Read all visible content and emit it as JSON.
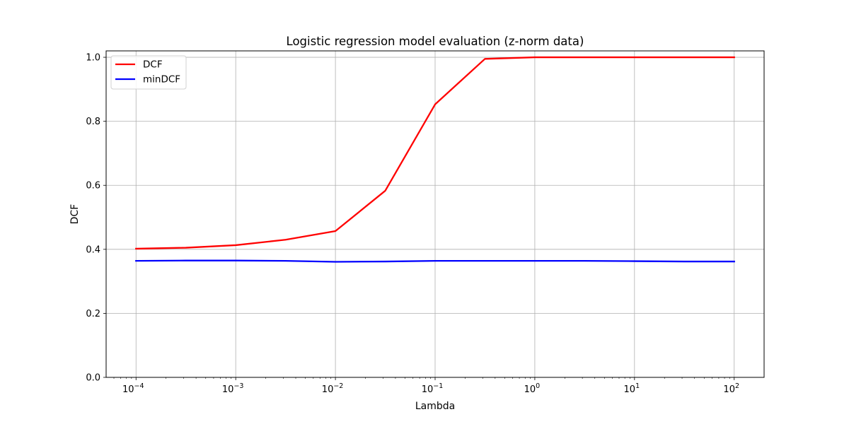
{
  "chart_data": {
    "type": "line",
    "title": "Logistic regression model evaluation (z-norm data)",
    "xlabel": "Lambda",
    "ylabel": "DCF",
    "x_scale": "log",
    "xlim_exponents": [
      -4.3,
      2.3
    ],
    "ylim": [
      0,
      1.02
    ],
    "grid": true,
    "legend_position": "top-left",
    "x_ticks": [
      {
        "base": "10",
        "exp": "−4",
        "value": 0.0001
      },
      {
        "base": "10",
        "exp": "−3",
        "value": 0.001
      },
      {
        "base": "10",
        "exp": "−2",
        "value": 0.01
      },
      {
        "base": "10",
        "exp": "−1",
        "value": 0.1
      },
      {
        "base": "10",
        "exp": "0",
        "value": 1
      },
      {
        "base": "10",
        "exp": "1",
        "value": 10
      },
      {
        "base": "10",
        "exp": "2",
        "value": 100
      }
    ],
    "y_ticks": [
      {
        "label": "0.0",
        "value": 0.0
      },
      {
        "label": "0.2",
        "value": 0.2
      },
      {
        "label": "0.4",
        "value": 0.4
      },
      {
        "label": "0.6",
        "value": 0.6
      },
      {
        "label": "0.8",
        "value": 0.8
      },
      {
        "label": "1.0",
        "value": 1.0
      }
    ],
    "x": [
      0.0001,
      0.000316,
      0.001,
      0.00316,
      0.01,
      0.0316,
      0.1,
      0.316,
      1,
      3.16,
      10,
      31.6,
      100
    ],
    "series": [
      {
        "name": "DCF",
        "color": "#ff0000",
        "values": [
          0.402,
          0.405,
          0.413,
          0.43,
          0.457,
          0.583,
          0.853,
          0.995,
          1.0,
          1.0,
          1.0,
          1.0,
          1.0
        ]
      },
      {
        "name": "minDCF",
        "color": "#0000ff",
        "values": [
          0.364,
          0.365,
          0.365,
          0.364,
          0.361,
          0.362,
          0.364,
          0.364,
          0.364,
          0.364,
          0.363,
          0.362,
          0.362
        ]
      }
    ]
  }
}
